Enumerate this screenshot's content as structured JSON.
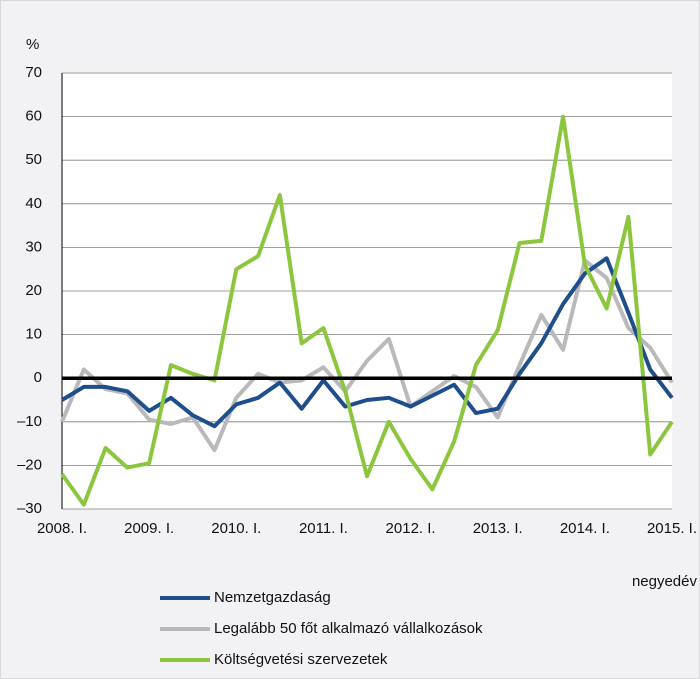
{
  "chart_data": {
    "type": "line",
    "y_label": "%",
    "x_label": "negyedév",
    "categories": [
      "2008. I.",
      null,
      null,
      null,
      "2009. I.",
      null,
      null,
      null,
      "2010. I.",
      null,
      null,
      null,
      "2011. I.",
      null,
      null,
      null,
      "2012. I.",
      null,
      null,
      null,
      "2013. I.",
      null,
      null,
      null,
      "2014. I.",
      null,
      null,
      null,
      "2015. I."
    ],
    "series": [
      {
        "name": "Nemzetgazdaság",
        "color": "#1f4e8c",
        "values": [
          -5,
          -2,
          -2,
          -3,
          -7.5,
          -4.5,
          -8.5,
          -11,
          -6,
          -4.5,
          -1,
          -7,
          -0.5,
          -6.5,
          -5,
          -4.5,
          -6.5,
          -4,
          -1.5,
          -8,
          -7,
          1,
          8,
          17,
          24,
          27.5,
          15,
          2,
          -4.5
        ]
      },
      {
        "name": "Legalább 50 főt alkalmazó vállalkozások",
        "color": "#b9b9bb",
        "values": [
          -10,
          2,
          -2.5,
          -3.5,
          -9.5,
          -10.5,
          -9,
          -16.5,
          -4.5,
          1,
          -1,
          -0.5,
          2.5,
          -3,
          4,
          9,
          -6.5,
          -3,
          0.5,
          -2,
          -9,
          3,
          14.5,
          6.5,
          27,
          23,
          11.5,
          7,
          -1
        ]
      },
      {
        "name": "Költségvetési szervezetek",
        "color": "#8cc63f",
        "values": [
          -22,
          -29,
          -16,
          -20.5,
          -19.5,
          3,
          1,
          -0.5,
          25,
          28,
          42,
          8,
          11.5,
          -3,
          -22.5,
          -10,
          -18.5,
          -25.5,
          -14.5,
          3,
          11,
          31,
          31.5,
          60,
          26,
          16,
          37,
          -17.5,
          -10
        ]
      }
    ],
    "ylim": [
      -30,
      70
    ],
    "yticks": [
      {
        "value": -30,
        "label": "–30"
      },
      {
        "value": -20,
        "label": "–20"
      },
      {
        "value": -10,
        "label": "–10"
      },
      0,
      10,
      20,
      30,
      40,
      50,
      60,
      70
    ],
    "grid": true
  }
}
